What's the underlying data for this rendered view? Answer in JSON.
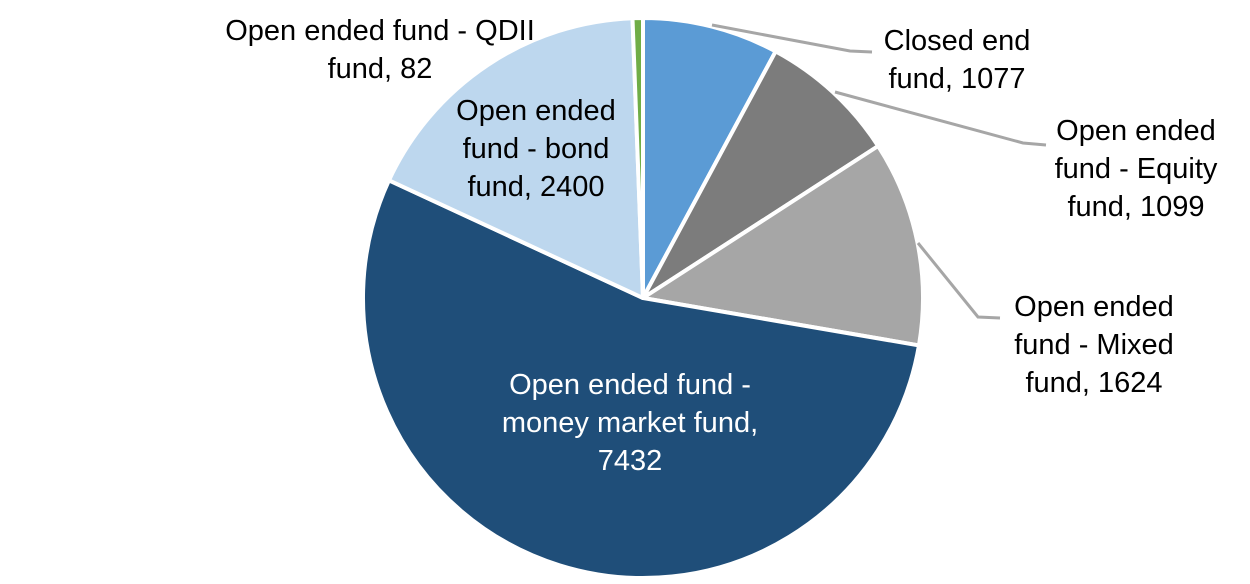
{
  "chart_data": {
    "type": "pie",
    "title": "",
    "legend_position": "none",
    "start_angle_deg": 0,
    "direction": "clockwise",
    "slices": [
      {
        "name": "Closed end fund",
        "value": 1077,
        "color": "#5B9BD5",
        "display": "Closed end\nfund, 1077",
        "label_color": "#000000",
        "label_position": "outside-right",
        "leader_line": true
      },
      {
        "name": "Open ended fund - Equity fund",
        "value": 1099,
        "color": "#7C7C7C",
        "display": "Open ended\nfund - Equity\nfund, 1099",
        "label_color": "#000000",
        "label_position": "outside-right",
        "leader_line": true
      },
      {
        "name": "Open ended fund - Mixed fund",
        "value": 1624,
        "color": "#A6A6A6",
        "display": "Open ended\nfund - Mixed\nfund, 1624",
        "label_color": "#000000",
        "label_position": "outside-right",
        "leader_line": true
      },
      {
        "name": "Open ended fund - money market fund",
        "value": 7432,
        "color": "#1F4E79",
        "display": "Open ended fund -\nmoney market fund,\n7432",
        "label_color": "#FFFFFF",
        "label_position": "inside",
        "leader_line": false
      },
      {
        "name": "Open ended fund - bond fund",
        "value": 2400,
        "color": "#BDD7EE",
        "display": "Open ended\nfund - bond\nfund, 2400",
        "label_color": "#000000",
        "label_position": "outside-left",
        "leader_line": false
      },
      {
        "name": "Open ended fund - QDII fund",
        "value": 82,
        "color": "#70AD47",
        "display": "Open ended fund - QDII\nfund, 82",
        "label_color": "#000000",
        "label_position": "outside-left",
        "leader_line": false
      }
    ],
    "colors": {
      "slice_border": "#FFFFFF",
      "leader_line": "#A6A6A6",
      "background": "#FFFFFF"
    }
  }
}
